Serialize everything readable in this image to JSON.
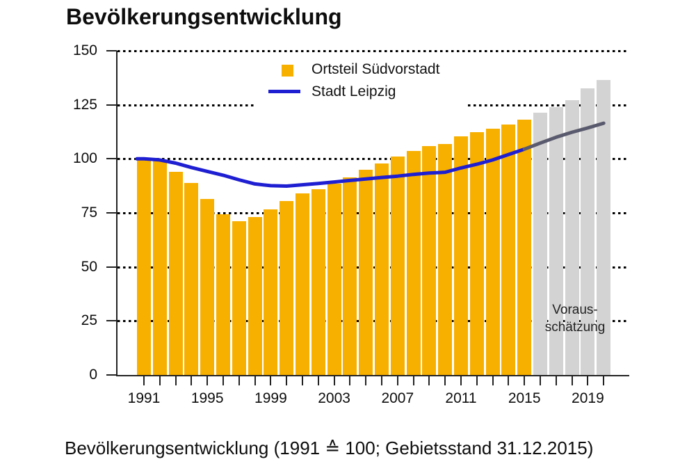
{
  "title": "Bevölkerungsentwicklung",
  "caption": "Bevölkerungsentwicklung (1991 ≙ 100; Gebietsstand 31.12.2015)",
  "legend": {
    "bar_label": "Ortsteil Südvorstadt",
    "line_label": "Stadt Leipzig"
  },
  "forecast_label": {
    "line1": "Voraus-",
    "line2": "schätzung"
  },
  "colors": {
    "bar": "#F8B000",
    "bar_forecast": "#D3D3D3",
    "line": "#1E1ED2",
    "line_forecast": "#5A5A6E",
    "grid": "#000000",
    "text": "#0d0d0d"
  },
  "chart_data": {
    "type": "bar",
    "title": "Bevölkerungsentwicklung",
    "subtitle": "1991 ≙ 100; Gebietsstand 31.12.2015",
    "categories": [
      1991,
      1992,
      1993,
      1994,
      1995,
      1996,
      1997,
      1998,
      1999,
      2000,
      2001,
      2002,
      2003,
      2004,
      2005,
      2006,
      2007,
      2008,
      2009,
      2010,
      2011,
      2012,
      2013,
      2014,
      2015,
      2016,
      2017,
      2018,
      2019,
      2020
    ],
    "series": [
      {
        "name": "Ortsteil Südvorstadt",
        "type": "bar",
        "forecast_start_year": 2016,
        "values": [
          100,
          99,
          94,
          89,
          81.5,
          74.5,
          71,
          73,
          76.5,
          80.5,
          84,
          86,
          88.5,
          91.5,
          95,
          98,
          101,
          103.5,
          106,
          107,
          110.5,
          112.5,
          114,
          116,
          118,
          121.5,
          124,
          127,
          132.5,
          136.5
        ]
      },
      {
        "name": "Stadt Leipzig",
        "type": "line",
        "forecast_start_year": 2016,
        "values": [
          100,
          99.5,
          98,
          96,
          94.2,
          92.4,
          90.3,
          88.4,
          87.6,
          87.4,
          88,
          88.6,
          89.3,
          90,
          90.7,
          91.4,
          92,
          92.8,
          93.4,
          93.8,
          95.8,
          97.5,
          99.5,
          102,
          104.5,
          107.3,
          110,
          112.3,
          114.3,
          116.5
        ]
      }
    ],
    "ylim": [
      0,
      150
    ],
    "yticks": [
      0,
      25,
      50,
      75,
      100,
      125,
      150
    ],
    "xtick_labeled_years": [
      1991,
      1995,
      1999,
      2003,
      2007,
      2011,
      2015,
      2019
    ],
    "grid": "horizontal-dotted",
    "legend_position": "top-center",
    "forecast_region_years": [
      2016,
      2020
    ]
  }
}
